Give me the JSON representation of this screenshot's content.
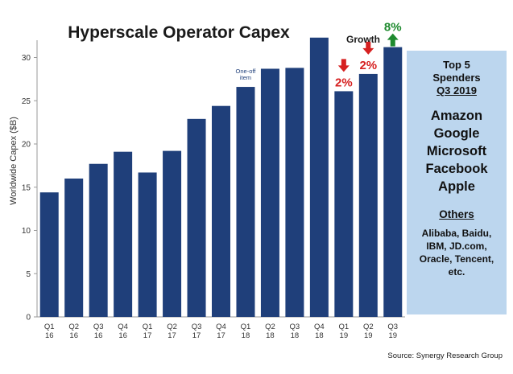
{
  "chart_data": {
    "type": "bar",
    "title": "Hyperscale Operator Capex",
    "ylabel": "Worldwide Capex ($B)",
    "xlabel": "",
    "ylim": [
      0,
      32
    ],
    "yticks": [
      0,
      5,
      10,
      15,
      20,
      25,
      30
    ],
    "grid": false,
    "bar_color": "#1f3f7a",
    "categories": [
      [
        "Q1",
        "16"
      ],
      [
        "Q2",
        "16"
      ],
      [
        "Q3",
        "16"
      ],
      [
        "Q4",
        "16"
      ],
      [
        "Q1",
        "17"
      ],
      [
        "Q2",
        "17"
      ],
      [
        "Q3",
        "17"
      ],
      [
        "Q4",
        "17"
      ],
      [
        "Q1",
        "18"
      ],
      [
        "Q2",
        "18"
      ],
      [
        "Q3",
        "18"
      ],
      [
        "Q4",
        "18"
      ],
      [
        "Q1",
        "19"
      ],
      [
        "Q2",
        "19"
      ],
      [
        "Q3",
        "19"
      ]
    ],
    "values": [
      14.4,
      16.0,
      17.7,
      19.1,
      16.7,
      19.2,
      22.9,
      24.4,
      26.6,
      28.7,
      28.8,
      32.3,
      26.1,
      28.1,
      31.2
    ],
    "annotations": {
      "one_off": {
        "text": "One-off item",
        "bar_index": 8
      },
      "growth_title": "Growth",
      "growth": [
        {
          "bar_index": 12,
          "text": "2%",
          "direction": "down",
          "color": "#d62020"
        },
        {
          "bar_index": 13,
          "text": "2%",
          "direction": "down",
          "color": "#d62020"
        },
        {
          "bar_index": 14,
          "text": "8%",
          "direction": "up",
          "color": "#1e8a2e"
        }
      ]
    },
    "source": "Source:  Synergy Research  Group"
  },
  "side_panel": {
    "heading_line1": "Top 5",
    "heading_line2": "Spenders",
    "heading_line3": "Q3 2019",
    "top_spenders": [
      "Amazon",
      "Google",
      "Microsoft",
      "Facebook",
      "Apple"
    ],
    "others_heading": "Others",
    "others_lines": [
      "Alibaba, Baidu,",
      "IBM, JD.com,",
      "Oracle, Tencent,",
      "etc."
    ],
    "background": "#bcd6ee"
  }
}
